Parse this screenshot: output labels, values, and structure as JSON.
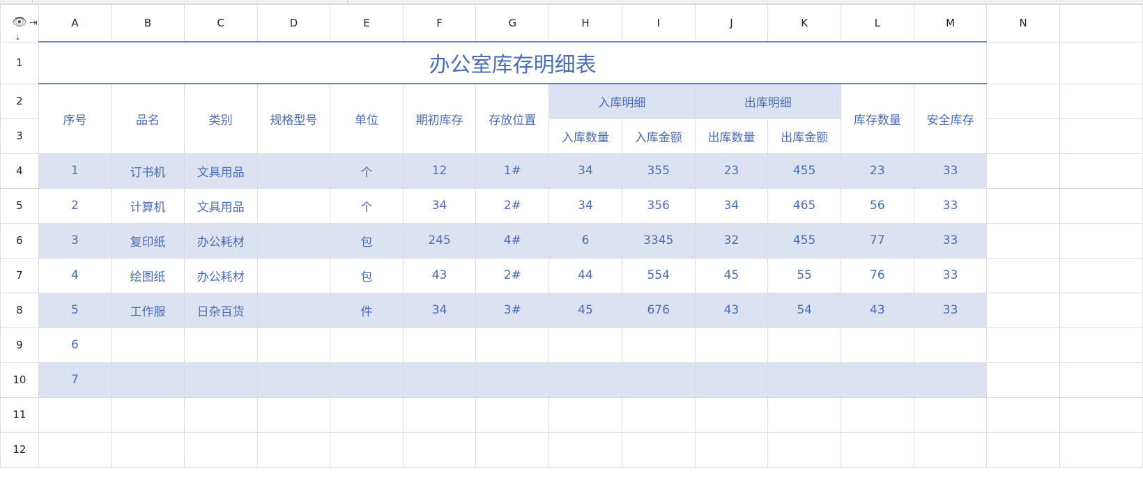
{
  "columns": [
    "A",
    "B",
    "C",
    "D",
    "E",
    "F",
    "G",
    "H",
    "I",
    "J",
    "K",
    "L",
    "M",
    "N",
    ""
  ],
  "rows": [
    "1",
    "2",
    "3",
    "4",
    "5",
    "6",
    "7",
    "8",
    "9",
    "10",
    "11",
    "12"
  ],
  "corner_icons": [
    "eye-icon",
    "collapse-columns-icon",
    "collapse-rows-icon"
  ],
  "colors": {
    "text": "#4b6db3",
    "band": "#dce2f1",
    "title_border": "#6d86bd"
  },
  "title": "办公室库存明细表",
  "header": {
    "seq": "序号",
    "name": "品名",
    "category": "类别",
    "spec": "规格型号",
    "unit": "单位",
    "initial_stock": "期初库存",
    "location": "存放位置",
    "inbound_group": "入库明细",
    "inbound_qty": "入库数量",
    "inbound_amount": "入库金额",
    "outbound_group": "出库明细",
    "outbound_qty": "出库数量",
    "outbound_amount": "出库金额",
    "stock_qty": "库存数量",
    "safety_stock": "安全库存"
  },
  "items": [
    [
      "1",
      "订书机",
      "文具用品",
      "",
      "个",
      "12",
      "1#",
      "34",
      "355",
      "23",
      "455",
      "23",
      "33"
    ],
    [
      "2",
      "计算机",
      "文具用品",
      "",
      "个",
      "34",
      "2#",
      "34",
      "356",
      "34",
      "465",
      "56",
      "33"
    ],
    [
      "3",
      "复印纸",
      "办公耗材",
      "",
      "包",
      "245",
      "4#",
      "6",
      "3345",
      "32",
      "455",
      "77",
      "33"
    ],
    [
      "4",
      "绘图纸",
      "办公耗材",
      "",
      "包",
      "43",
      "2#",
      "44",
      "554",
      "45",
      "55",
      "76",
      "33"
    ],
    [
      "5",
      "工作服",
      "日杂百货",
      "",
      "件",
      "34",
      "3#",
      "45",
      "676",
      "43",
      "54",
      "43",
      "33"
    ],
    [
      "6",
      "",
      "",
      "",
      "",
      "",
      "",
      "",
      "",
      "",
      "",
      "",
      ""
    ],
    [
      "7",
      "",
      "",
      "",
      "",
      "",
      "",
      "",
      "",
      "",
      "",
      "",
      ""
    ]
  ]
}
